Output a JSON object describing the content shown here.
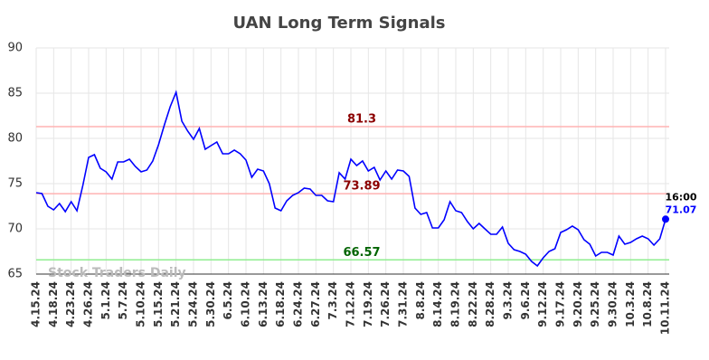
{
  "chart_data": {
    "type": "line",
    "title": "UAN Long Term Signals",
    "watermark": "Stock Traders Daily",
    "categories": [
      "4.15.24",
      null,
      null,
      "4.18.24",
      null,
      null,
      "4.23.24",
      null,
      null,
      "4.26.24",
      null,
      null,
      "5.1.24",
      null,
      null,
      "5.7.24",
      null,
      null,
      "5.10.24",
      null,
      null,
      "5.15.24",
      null,
      null,
      "5.21.24",
      null,
      null,
      "5.24.24",
      null,
      null,
      "5.30.24",
      null,
      null,
      "6.5.24",
      null,
      null,
      "6.10.24",
      null,
      null,
      "6.13.24",
      null,
      null,
      "6.18.24",
      null,
      null,
      "6.24.24",
      null,
      null,
      "6.27.24",
      null,
      null,
      "7.3.24",
      null,
      null,
      "7.12.24",
      null,
      null,
      "7.19.24",
      null,
      null,
      "7.26.24",
      null,
      null,
      "7.31.24",
      null,
      null,
      "8.8.24",
      null,
      null,
      "8.14.24",
      null,
      null,
      "8.19.24",
      null,
      null,
      "8.22.24",
      null,
      null,
      "8.28.24",
      null,
      null,
      "9.3.24",
      null,
      null,
      "9.6.24",
      null,
      null,
      "9.12.24",
      null,
      null,
      "9.17.24",
      null,
      null,
      "9.20.24",
      null,
      null,
      "9.25.24",
      null,
      null,
      "9.30.24",
      null,
      null,
      "10.3.24",
      null,
      null,
      "10.8.24",
      null,
      null,
      "10.11.24"
    ],
    "values": [
      74.0,
      73.9,
      72.5,
      72.1,
      72.8,
      71.9,
      73.0,
      72.0,
      74.8,
      77.9,
      78.2,
      76.7,
      76.3,
      75.5,
      77.4,
      77.4,
      77.7,
      76.9,
      76.3,
      76.5,
      77.5,
      79.3,
      81.5,
      83.5,
      85.1,
      81.9,
      80.8,
      79.9,
      81.1,
      78.8,
      79.2,
      79.6,
      78.3,
      78.3,
      78.7,
      78.3,
      77.6,
      75.7,
      76.6,
      76.4,
      75.0,
      72.3,
      72.0,
      73.1,
      73.7,
      74.0,
      74.5,
      74.4,
      73.7,
      73.7,
      73.1,
      73.0,
      76.2,
      75.5,
      77.7,
      77.0,
      77.5,
      76.4,
      76.8,
      75.4,
      76.4,
      75.5,
      76.5,
      76.4,
      75.8,
      72.3,
      71.6,
      71.8,
      70.1,
      70.1,
      71.0,
      73.0,
      72.0,
      71.8,
      70.8,
      70.0,
      70.6,
      70.0,
      69.4,
      69.4,
      70.2,
      68.4,
      67.7,
      67.5,
      67.2,
      66.4,
      65.9,
      66.8,
      67.5,
      67.8,
      69.6,
      69.9,
      70.3,
      69.9,
      68.8,
      68.3,
      67.0,
      67.4,
      67.4,
      67.1,
      69.2,
      68.3,
      68.5,
      68.9,
      69.2,
      68.9,
      68.2,
      68.9,
      71.07
    ],
    "color": "#0000ff",
    "last_time": "16:00",
    "ylim": [
      65,
      90
    ],
    "yticks": [
      65,
      70,
      75,
      80,
      85,
      90
    ],
    "grid": true,
    "hlines": [
      {
        "value": 81.3,
        "color": "#ffb3b3",
        "label_color": "#8b0000"
      },
      {
        "value": 73.89,
        "color": "#ffb3b3",
        "label_color": "#8b0000"
      },
      {
        "value": 66.57,
        "color": "#90ee90",
        "label_color": "#006400"
      }
    ]
  }
}
